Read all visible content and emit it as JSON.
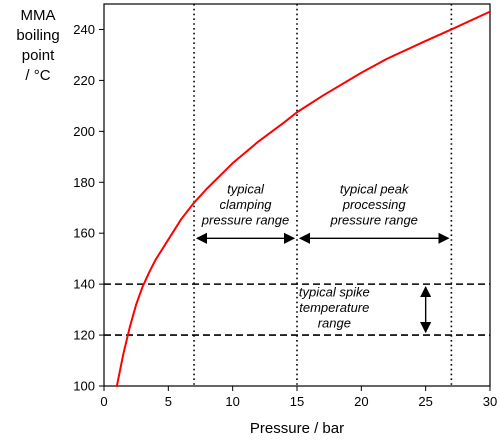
{
  "chart_data": {
    "type": "line",
    "xlabel": "Pressure / bar",
    "ylabel_lines": [
      "MMA",
      "boiling",
      "point",
      "/ °C"
    ],
    "xlim": [
      0,
      30
    ],
    "ylim": [
      100,
      250
    ],
    "xticks": [
      0,
      5,
      10,
      15,
      20,
      25,
      30
    ],
    "yticks": [
      100,
      120,
      140,
      160,
      180,
      200,
      220,
      240
    ],
    "grid": false,
    "series": [
      {
        "color": "#ff0000",
        "x": [
          1.0,
          1.5,
          2.0,
          2.5,
          3.0,
          3.5,
          4.0,
          5.0,
          6.0,
          7.0,
          8.0,
          10.0,
          12.0,
          14.0,
          15.0,
          17.0,
          20.0,
          22.0,
          25.0,
          27.0,
          30.0
        ],
        "y": [
          100.0,
          112.5,
          123.0,
          132.0,
          139.0,
          144.5,
          149.5,
          157.5,
          165.5,
          172.0,
          177.5,
          187.5,
          196.0,
          203.5,
          207.5,
          214.0,
          223.0,
          228.5,
          235.5,
          240.0,
          247.0
        ]
      }
    ],
    "vertical_lines": [
      {
        "x": 7,
        "style": "dotted"
      },
      {
        "x": 15,
        "style": "dotted"
      },
      {
        "x": 27,
        "style": "dotted"
      }
    ],
    "horizontal_lines": [
      {
        "y": 140,
        "style": "dashed"
      },
      {
        "y": 120,
        "style": "dashed"
      }
    ],
    "annotations": [
      {
        "lines": [
          "typical",
          "clamping",
          "pressure range"
        ],
        "arrow_from": [
          7,
          158
        ],
        "arrow_to": [
          15,
          158
        ],
        "arrow_direction": "horizontal"
      },
      {
        "lines": [
          "typical peak",
          "processing",
          "pressure range"
        ],
        "arrow_from": [
          15,
          158
        ],
        "arrow_to": [
          27,
          158
        ],
        "arrow_direction": "horizontal"
      },
      {
        "lines": [
          "typical spike",
          "temperature",
          "range"
        ],
        "arrow_from": [
          25,
          140
        ],
        "arrow_to": [
          25,
          120
        ],
        "arrow_direction": "vertical"
      }
    ]
  }
}
